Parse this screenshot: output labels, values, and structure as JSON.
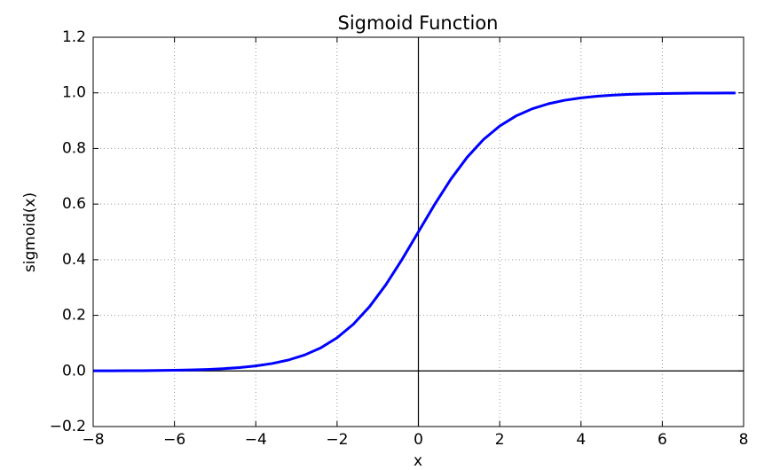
{
  "chart_data": {
    "type": "line",
    "title": "Sigmoid Function",
    "x_label": "x",
    "y_label": "sigmoid(x)",
    "x": [
      -8,
      -7.6,
      -7.2,
      -6.8,
      -6.4,
      -6,
      -5.6,
      -5.2,
      -4.8,
      -4.4,
      -4,
      -3.6,
      -3.2,
      -2.8,
      -2.4,
      -2,
      -1.6,
      -1.2,
      -0.8,
      -0.4,
      0,
      0.4,
      0.8,
      1.2,
      1.6,
      2,
      2.4,
      2.8,
      3.2,
      3.6,
      4,
      4.4,
      4.8,
      5.2,
      5.6,
      6,
      6.4,
      6.8,
      7.2,
      7.6,
      7.8
    ],
    "series": [
      {
        "color": "#0000ff",
        "values": [
          0.00034,
          0.0005,
          0.00075,
          0.00111,
          0.00166,
          0.00247,
          0.00368,
          0.00548,
          0.00816,
          0.01213,
          0.01799,
          0.0266,
          0.03917,
          0.05732,
          0.08317,
          0.1192,
          0.16798,
          0.23148,
          0.31003,
          0.40131,
          0.5,
          0.59869,
          0.68997,
          0.76852,
          0.83202,
          0.8808,
          0.91683,
          0.94268,
          0.96083,
          0.9734,
          0.98201,
          0.98787,
          0.99184,
          0.99452,
          0.99632,
          0.99753,
          0.99834,
          0.99889,
          0.99925,
          0.9995,
          0.99959
        ]
      }
    ],
    "xlim": [
      -8,
      8
    ],
    "ylim": [
      -0.2,
      1.2
    ],
    "xticks": [
      {
        "value": -8,
        "label": "−8"
      },
      {
        "value": -6,
        "label": "−6"
      },
      {
        "value": -4,
        "label": "−4"
      },
      {
        "value": -2,
        "label": "−2"
      },
      0,
      2,
      4,
      6,
      8
    ],
    "yticks": [
      {
        "value": -0.2,
        "label": "−0.2"
      },
      {
        "value": 0,
        "label": "0.0"
      },
      0.2,
      0.4,
      0.6,
      0.8,
      {
        "value": 1,
        "label": "1.0"
      },
      1.2
    ],
    "grid": true,
    "zero_lines": true
  }
}
